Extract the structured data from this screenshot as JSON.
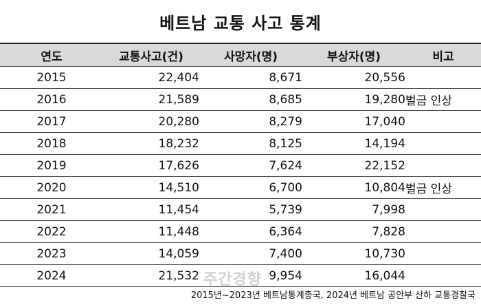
{
  "title": "베트남 교통 사고 통계",
  "headers": [
    "연도",
    "교통사고(건)",
    "사망자(명)",
    "부상자(명)",
    "비고"
  ],
  "rows": [
    {
      "year": "2015",
      "accidents": "22,404",
      "deaths": "8,671",
      "injuries": "20,556",
      "note": ""
    },
    {
      "year": "2016",
      "accidents": "21,589",
      "deaths": "8,685",
      "injuries": "19,280",
      "note": "벌금 인상"
    },
    {
      "year": "2017",
      "accidents": "20,280",
      "deaths": "8,279",
      "injuries": "17,040",
      "note": ""
    },
    {
      "year": "2018",
      "accidents": "18,232",
      "deaths": "8,125",
      "injuries": "14,194",
      "note": ""
    },
    {
      "year": "2019",
      "accidents": "17,626",
      "deaths": "7,624",
      "injuries": "22,152",
      "note": ""
    },
    {
      "year": "2020",
      "accidents": "14,510",
      "deaths": "6,700",
      "injuries": "10,804",
      "note": "벌금 인상"
    },
    {
      "year": "2021",
      "accidents": "11,454",
      "deaths": "5,739",
      "injuries": "7,998",
      "note": ""
    },
    {
      "year": "2022",
      "accidents": "11,448",
      "deaths": "6,364",
      "injuries": "7,828",
      "note": ""
    },
    {
      "year": "2023",
      "accidents": "14,059",
      "deaths": "7,400",
      "injuries": "10,730",
      "note": ""
    },
    {
      "year": "2024",
      "accidents": "21,532",
      "deaths": "9,954",
      "injuries": "16,044",
      "note": ""
    }
  ],
  "source": "2015년~2023년 베트남통계총국, 2024년 베트남 공안부 산하 교통경찰국",
  "watermark": "주간경향"
}
